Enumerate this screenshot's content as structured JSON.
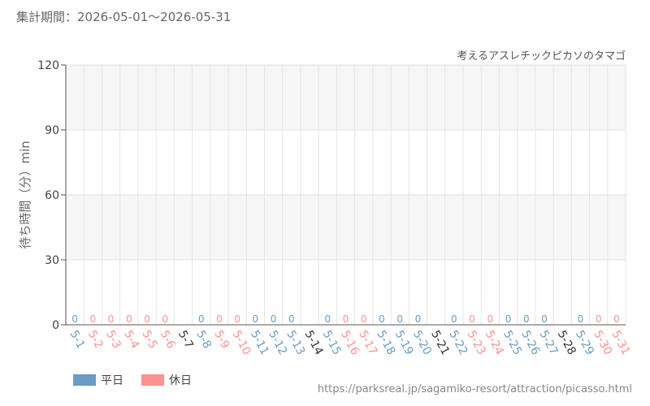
{
  "header": {
    "period": "集計期間：2026-05-01～2026-05-31",
    "attraction": "考えるアスレチックピカソのタマゴ",
    "source": "https://parksreal.jp/sagamiko-resort/attraction/picasso.html"
  },
  "legend": {
    "weekday": "平日",
    "holiday": "休日"
  },
  "colors": {
    "weekday": "#6a9cc4",
    "holiday": "#ff9190",
    "day_none": "#333333",
    "band_alt": "#f6f6f6"
  },
  "chart_data": {
    "type": "bar",
    "title": "考えるアスレチックピカソのタマゴ",
    "xlabel": "",
    "ylabel": "待ち時間（分）min",
    "ylim": [
      0,
      120
    ],
    "yticks": [
      0,
      30,
      60,
      90,
      120
    ],
    "grid": true,
    "legend_position": "bottom-left",
    "categories": [
      "5-1",
      "5-2",
      "5-3",
      "5-4",
      "5-5",
      "5-6",
      "5-7",
      "5-8",
      "5-9",
      "5-10",
      "5-11",
      "5-12",
      "5-13",
      "5-14",
      "5-15",
      "5-16",
      "5-17",
      "5-18",
      "5-19",
      "5-20",
      "5-21",
      "5-22",
      "5-23",
      "5-24",
      "5-25",
      "5-26",
      "5-27",
      "5-28",
      "5-29",
      "5-30",
      "5-31"
    ],
    "day_types": [
      "weekday",
      "holiday",
      "holiday",
      "holiday",
      "holiday",
      "holiday",
      "none",
      "weekday",
      "holiday",
      "holiday",
      "weekday",
      "weekday",
      "weekday",
      "none",
      "weekday",
      "holiday",
      "holiday",
      "weekday",
      "weekday",
      "weekday",
      "none",
      "weekday",
      "holiday",
      "holiday",
      "weekday",
      "weekday",
      "weekday",
      "none",
      "weekday",
      "holiday",
      "holiday"
    ],
    "values": [
      0,
      0,
      0,
      0,
      0,
      0,
      null,
      0,
      0,
      0,
      0,
      0,
      0,
      null,
      0,
      0,
      0,
      0,
      0,
      0,
      null,
      0,
      0,
      0,
      0,
      0,
      0,
      null,
      0,
      0,
      0
    ],
    "data_labels": [
      "0",
      "0",
      "0",
      "0",
      "0",
      "0",
      "",
      "0",
      "0",
      "0",
      "0",
      "0",
      "0",
      "",
      "0",
      "0",
      "0",
      "0",
      "0",
      "0",
      "",
      "0",
      "0",
      "0",
      "0",
      "0",
      "0",
      "",
      "0",
      "0",
      "0"
    ],
    "series": [
      {
        "name": "平日",
        "key": "weekday"
      },
      {
        "name": "休日",
        "key": "holiday"
      }
    ]
  }
}
